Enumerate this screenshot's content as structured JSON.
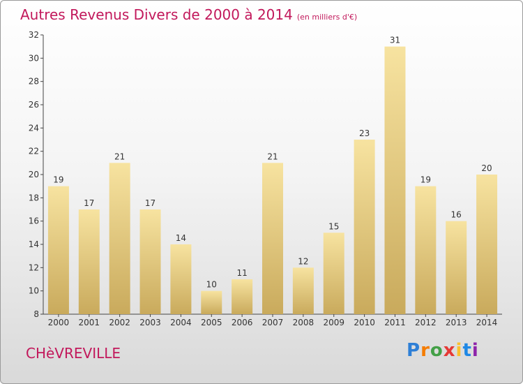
{
  "title": "Autres Revenus Divers de 2000 à 2014",
  "unit_note": "(en milliers d'€)",
  "commune": "CHèVREVILLE",
  "logo": "Proxiti",
  "colors": {
    "bar_light": "#f7e3a0",
    "bar_dark": "#c9aa5c",
    "title": "#c2185b"
  },
  "chart_data": {
    "type": "bar",
    "title": "Autres Revenus Divers de 2000 à 2014",
    "categories": [
      "2000",
      "2001",
      "2002",
      "2003",
      "2004",
      "2005",
      "2006",
      "2007",
      "2008",
      "2009",
      "2010",
      "2011",
      "2012",
      "2013",
      "2014"
    ],
    "values": [
      19,
      17,
      21,
      17,
      14,
      10,
      11,
      21,
      12,
      15,
      23,
      31,
      19,
      16,
      20
    ],
    "ylim": [
      8,
      32
    ],
    "yticks": [
      8,
      10,
      12,
      14,
      16,
      18,
      20,
      22,
      24,
      26,
      28,
      30,
      32
    ],
    "grid": false,
    "xlabel": "",
    "ylabel": ""
  }
}
